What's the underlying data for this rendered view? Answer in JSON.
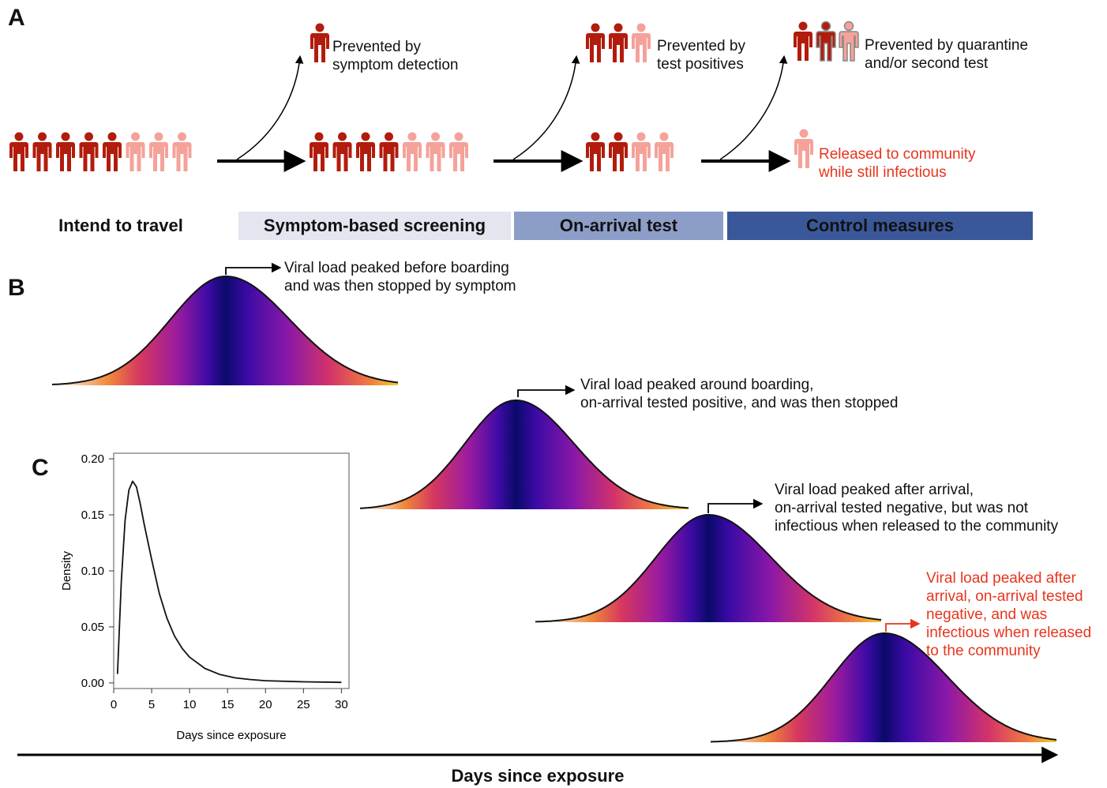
{
  "panel_a": {
    "letter": "A",
    "prevented_symptom": [
      "Prevented by",
      "symptom detection"
    ],
    "prevented_test": [
      "Prevented by",
      "test positives"
    ],
    "prevented_quarantine": [
      "Prevented by quarantine",
      "and/or second test"
    ],
    "released": [
      "Released to community",
      "while still infectious"
    ],
    "stages": [
      "Intend to travel",
      "Symptom-based screening",
      "On-arrival test",
      "Control measures"
    ],
    "colors": {
      "dark_person": "#b21c0c",
      "light_person": "#f4a29a",
      "grey_outline": "#888888",
      "released_text": "#e8341c"
    }
  },
  "panel_b": {
    "letter": "B",
    "curve1": [
      "Viral load peaked before boarding",
      "and was then stopped by symptom"
    ],
    "curve2": [
      "Viral load peaked around boarding,",
      "on-arrival tested positive, and was then stopped"
    ],
    "curve3": [
      "Viral load peaked after arrival,",
      "on-arrival tested negative, but was not",
      "infectious when released to the community"
    ],
    "curve4": [
      "Viral load peaked after",
      "arrival, on-arrival tested",
      "negative, and was",
      "infectious when released",
      "to the community"
    ]
  },
  "panel_c": {
    "letter": "C"
  },
  "chart_data": {
    "type": "line",
    "xlabel": "Days since exposure",
    "ylabel": "Density",
    "xlim": [
      0,
      31
    ],
    "ylim": [
      -0.005,
      0.205
    ],
    "xticks": [
      "0",
      "5",
      "10",
      "15",
      "20",
      "25",
      "30"
    ],
    "yticks": [
      "0.00",
      "0.05",
      "0.10",
      "0.15",
      "0.20"
    ],
    "x": [
      0.5,
      1,
      1.5,
      2,
      2.5,
      3,
      3.5,
      4,
      5,
      6,
      7,
      8,
      9,
      10,
      12,
      14,
      16,
      18,
      20,
      25,
      30
    ],
    "y": [
      0.008,
      0.09,
      0.145,
      0.172,
      0.18,
      0.175,
      0.16,
      0.142,
      0.11,
      0.08,
      0.058,
      0.042,
      0.031,
      0.023,
      0.013,
      0.0075,
      0.0045,
      0.003,
      0.002,
      0.001,
      0.0005
    ]
  },
  "bottom_axis": {
    "label": "Days since exposure"
  }
}
